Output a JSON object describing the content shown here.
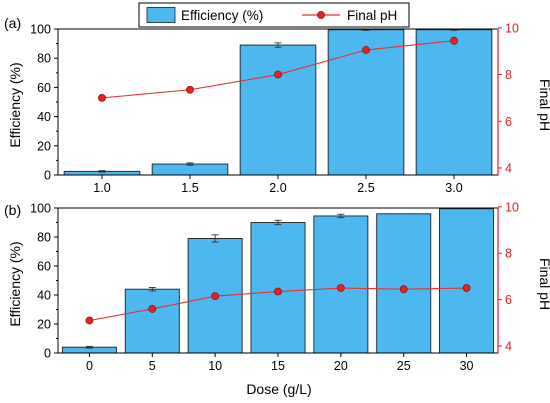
{
  "legend": {
    "bar_label": "Efficiency (%)",
    "line_label": "Final pH"
  },
  "colors": {
    "bar_fill": "#4db8f0",
    "bar_stroke": "#1f1f1f",
    "line": "#e53030",
    "marker": "#e82020",
    "right_axis": "#e02020",
    "left_axis": "#000000"
  },
  "chart_data": [
    {
      "type": "bar",
      "panel_label": "(a)",
      "categories": [
        "1.0",
        "1.5",
        "2.0",
        "2.5",
        "3.0"
      ],
      "series": [
        {
          "name": "Efficiency (%)",
          "axis": "left",
          "values": [
            2.5,
            7.5,
            89,
            99.5,
            99.5
          ],
          "errors": [
            0.5,
            0.8,
            1.5,
            0.4,
            0.4
          ]
        },
        {
          "name": "Final pH",
          "axis": "right",
          "type": "line",
          "values": [
            7.0,
            7.35,
            8.0,
            9.05,
            9.45
          ]
        }
      ],
      "ylabel": "Efficiency (%)",
      "y2label": "Final pH",
      "ylim": [
        0,
        100
      ],
      "y2lim": [
        3.7,
        9.95
      ],
      "yticks": [
        0,
        20,
        40,
        60,
        80,
        100
      ],
      "y2ticks": [
        4,
        6,
        8,
        10
      ],
      "xlabel": ""
    },
    {
      "type": "bar",
      "panel_label": "(b)",
      "categories": [
        "0",
        "5",
        "10",
        "15",
        "20",
        "25",
        "30"
      ],
      "series": [
        {
          "name": "Efficiency (%)",
          "axis": "left",
          "values": [
            4,
            44,
            79,
            90,
            94.5,
            96,
            99.5
          ],
          "errors": [
            0.6,
            1.2,
            2.5,
            1.5,
            1.2,
            0,
            0
          ]
        },
        {
          "name": "Final pH",
          "axis": "right",
          "type": "line",
          "values": [
            5.1,
            5.6,
            6.15,
            6.35,
            6.5,
            6.45,
            6.5
          ]
        }
      ],
      "ylabel": "Efficiency (%)",
      "y2label": "Final pH",
      "ylim": [
        0,
        100
      ],
      "y2lim": [
        3.7,
        9.95
      ],
      "yticks": [
        0,
        20,
        40,
        60,
        80,
        100
      ],
      "y2ticks": [
        4,
        6,
        8,
        10
      ],
      "xlabel": "Dose (g/L)"
    }
  ]
}
